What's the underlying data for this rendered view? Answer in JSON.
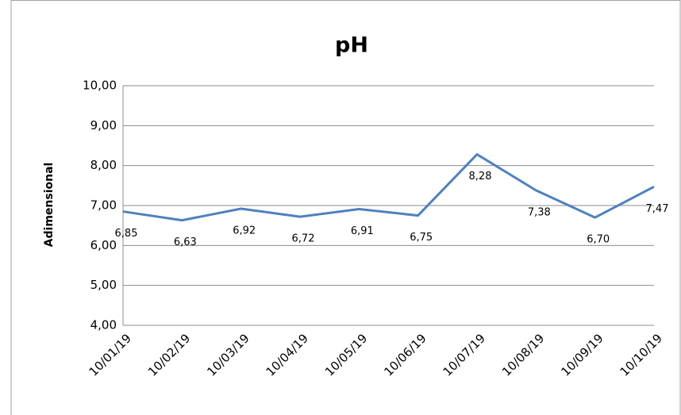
{
  "chart_data": {
    "type": "line",
    "title": "pH",
    "y_label": "Adimensional",
    "categories": [
      "10/01/19",
      "10/02/19",
      "10/03/19",
      "10/04/19",
      "10/05/19",
      "10/06/19",
      "10/07/19",
      "10/08/19",
      "10/09/19",
      "10/10/19"
    ],
    "values": [
      6.85,
      6.63,
      6.92,
      6.72,
      6.91,
      6.75,
      8.28,
      7.38,
      6.7,
      7.47
    ],
    "value_labels": [
      "6,85",
      "6,63",
      "6,92",
      "6,72",
      "6,91",
      "6,75",
      "8,28",
      "7,38",
      "6,70",
      "7,47"
    ],
    "color": "#4f81bd",
    "ylim": [
      4,
      10
    ],
    "yticks": [
      {
        "value": 4,
        "label": "4,00"
      },
      {
        "value": 5,
        "label": "5,00"
      },
      {
        "value": 6,
        "label": "6,00"
      },
      {
        "value": 7,
        "label": "7,00"
      },
      {
        "value": 8,
        "label": "8,00"
      },
      {
        "value": 9,
        "label": "9,00"
      },
      {
        "value": 10,
        "label": "10,00"
      }
    ],
    "grid": true
  }
}
